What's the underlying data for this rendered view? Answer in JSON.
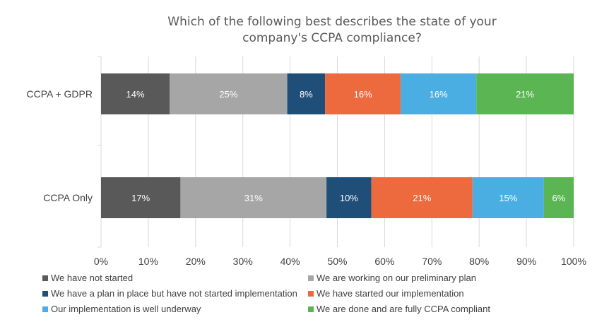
{
  "chart_data": {
    "type": "bar",
    "orientation": "horizontal",
    "stacked": true,
    "title": "Which of the following best describes the state of your company's CCPA compliance?",
    "title_lines": [
      "Which of the following best describes the state of your",
      "company's CCPA compliance?"
    ],
    "categories": [
      "CCPA + GDPR",
      "CCPA Only"
    ],
    "series": [
      {
        "name": "We have not started",
        "color": "#595959",
        "values": [
          14.5,
          16.8
        ],
        "labels": [
          "14%",
          "17%"
        ]
      },
      {
        "name": "We are working on our preliminary plan",
        "color": "#a6a6a6",
        "values": [
          24.9,
          30.9
        ],
        "labels": [
          "25%",
          "31%"
        ]
      },
      {
        "name": "We have a plan in place but have not started implementation",
        "color": "#1f4e79",
        "values": [
          8.0,
          9.5
        ],
        "labels": [
          "8%",
          "10%"
        ]
      },
      {
        "name": "We have started our implementation",
        "color": "#ed6a3f",
        "values": [
          16.0,
          21.4
        ],
        "labels": [
          "16%",
          "21%"
        ]
      },
      {
        "name": "Our implementation is well underway",
        "color": "#4aaee3",
        "values": [
          16.0,
          15.1
        ],
        "labels": [
          "16%",
          "15%"
        ]
      },
      {
        "name": "We are done and are fully CCPA compliant",
        "color": "#5ab552",
        "values": [
          20.6,
          6.3
        ],
        "labels": [
          "21%",
          "6%"
        ]
      }
    ],
    "xlim": [
      0,
      100
    ],
    "xticks": [
      "0%",
      "10%",
      "20%",
      "30%",
      "40%",
      "50%",
      "60%",
      "70%",
      "80%",
      "90%",
      "100%"
    ],
    "grid": true,
    "legend_position": "bottom"
  }
}
